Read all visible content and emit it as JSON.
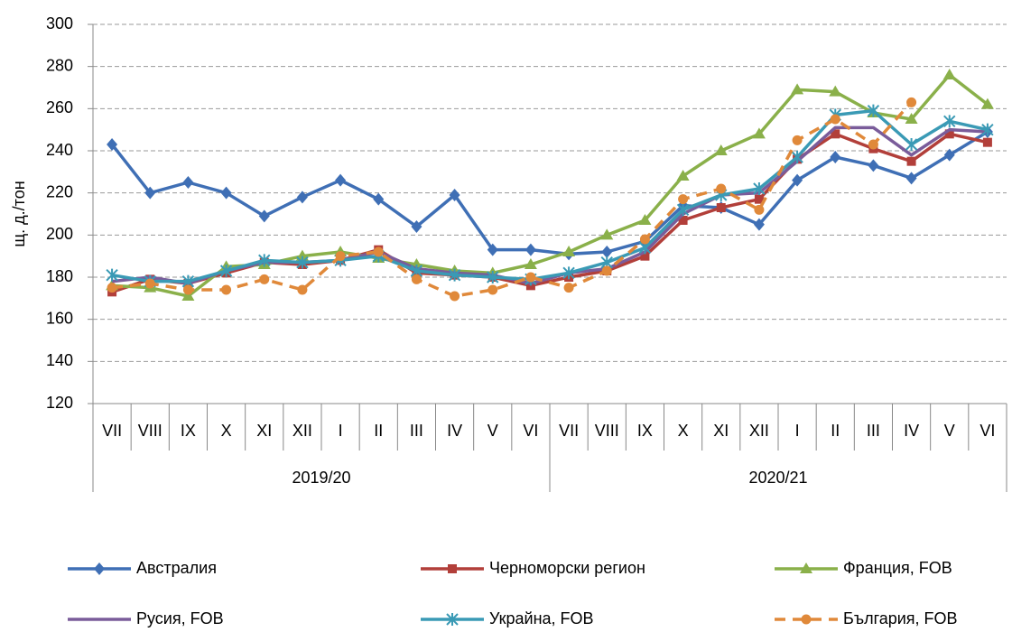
{
  "chart_data": {
    "type": "line",
    "y_label": "щ. д./тон",
    "groups": [
      {
        "label": "2019/20",
        "categories": [
          "VII",
          "VIII",
          "IX",
          "X",
          "XI",
          "XII",
          "I",
          "II",
          "III",
          "IV",
          "V",
          "VI"
        ]
      },
      {
        "label": "2020/21",
        "categories": [
          "VII",
          "VIII",
          "IX",
          "X",
          "XI",
          "XII",
          "I",
          "II",
          "III",
          "IV",
          "V",
          "VI"
        ]
      }
    ],
    "ylim": [
      120,
      300
    ],
    "yticks": [
      120,
      140,
      160,
      180,
      200,
      220,
      240,
      260,
      280,
      300
    ],
    "grid": true,
    "legend": "bottom",
    "series": [
      {
        "name": "Австралия",
        "color": "#3f6fb5",
        "marker": "diamond",
        "dashed": false,
        "values": [
          243,
          220,
          225,
          220,
          209,
          218,
          226,
          217,
          204,
          219,
          193,
          193,
          191,
          192,
          197,
          214,
          213,
          205,
          226,
          237,
          233,
          227,
          238,
          249
        ]
      },
      {
        "name": "Черноморски регион",
        "color": "#b23f3a",
        "marker": "square",
        "dashed": false,
        "values": [
          173,
          179,
          177,
          182,
          187,
          186,
          188,
          193,
          182,
          181,
          180,
          176,
          180,
          183,
          190,
          207,
          213,
          217,
          236,
          248,
          241,
          235,
          248,
          244
        ]
      },
      {
        "name": "Франция, FOB",
        "color": "#8ab04a",
        "marker": "triangle",
        "dashed": false,
        "values": [
          176,
          175,
          171,
          185,
          186,
          190,
          192,
          189,
          186,
          183,
          182,
          186,
          192,
          200,
          207,
          228,
          240,
          248,
          269,
          268,
          258,
          255,
          276,
          262
        ]
      },
      {
        "name": "Русия, FOB",
        "color": "#7a5c9a",
        "marker": "none",
        "dashed": false,
        "values": [
          178,
          180,
          177,
          183,
          187,
          187,
          188,
          192,
          184,
          182,
          181,
          177,
          182,
          184,
          192,
          210,
          219,
          220,
          235,
          251,
          251,
          238,
          250,
          249
        ]
      },
      {
        "name": "Украйна, FOB",
        "color": "#3a9ab5",
        "marker": "star",
        "dashed": false,
        "values": [
          181,
          178,
          178,
          183,
          188,
          187,
          188,
          190,
          183,
          181,
          180,
          179,
          182,
          187,
          194,
          212,
          219,
          222,
          237,
          257,
          259,
          243,
          254,
          250
        ]
      },
      {
        "name": "България, FOB",
        "color": "#e0893a",
        "marker": "circle",
        "dashed": true,
        "values": [
          175,
          177,
          174,
          174,
          179,
          174,
          190,
          192,
          179,
          171,
          174,
          180,
          175,
          183,
          198,
          217,
          222,
          212,
          245,
          255,
          243,
          263,
          null,
          null
        ]
      }
    ]
  }
}
